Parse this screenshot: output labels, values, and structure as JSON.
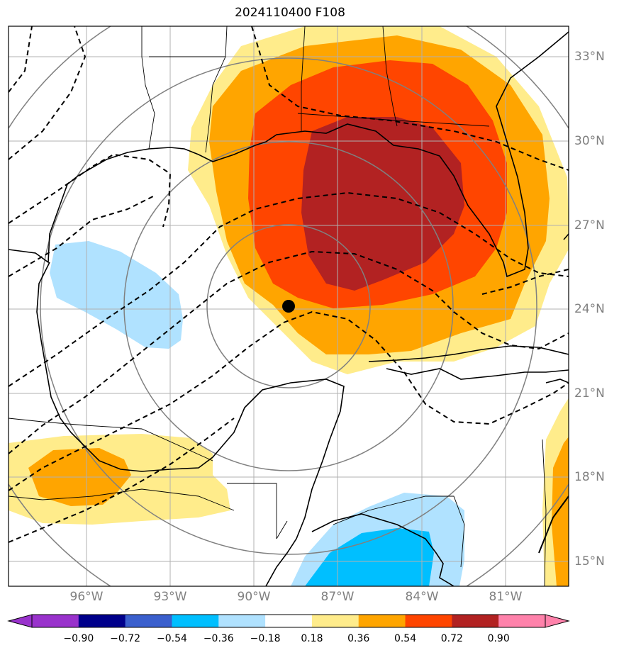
{
  "title": "2024110400 F108",
  "lat_labels": [
    "33°N",
    "30°N",
    "27°N",
    "24°N",
    "21°N",
    "18°N",
    "15°N"
  ],
  "lon_labels": [
    "96°W",
    "93°W",
    "90°W",
    "87°W",
    "84°W",
    "81°W"
  ],
  "colorbar": {
    "ticks": [
      "−0.90",
      "−0.72",
      "−0.54",
      "−0.36",
      "−0.18",
      "0.18",
      "0.36",
      "0.54",
      "0.72",
      "0.90"
    ],
    "colors": [
      "#9932cc",
      "#00008b",
      "#3a5fcd",
      "#00bfff",
      "#b0e2ff",
      "#ffffff",
      "#ffec8b",
      "#ffa500",
      "#ff4500",
      "#b22222",
      "#ff82ab"
    ]
  },
  "map": {
    "extent_lon": [
      -98.8,
      -78.8
    ],
    "extent_lat": [
      14.2,
      34.2
    ],
    "marker": {
      "lon": -88.7,
      "lat": 24.1,
      "color": "#000000"
    }
  }
}
